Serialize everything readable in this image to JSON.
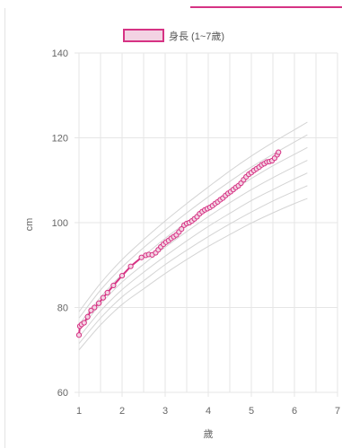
{
  "theme": {
    "accent": "#d63384",
    "grid_color": "#e6e6e6",
    "reference_color": "#d4d4d4",
    "label_color": "#666666"
  },
  "chart_data": {
    "type": "line",
    "xlabel": "歲",
    "ylabel": "cm",
    "xlim": [
      1,
      7
    ],
    "ylim": [
      60,
      140
    ],
    "xticks": [
      1,
      2,
      3,
      4,
      5,
      6,
      7
    ],
    "yticks": [
      60,
      80,
      100,
      120,
      140
    ],
    "grid": true,
    "legend": "top-center",
    "series": [
      {
        "name": "身長 (1~7歲)",
        "color": "#d63384",
        "fill": "#f3d3e3",
        "x": [
          1.0,
          1.02,
          1.06,
          1.12,
          1.2,
          1.28,
          1.36,
          1.46,
          1.56,
          1.66,
          1.8,
          2.0,
          2.2,
          2.45,
          2.55,
          2.62,
          2.7,
          2.78,
          2.84,
          2.9,
          2.96,
          3.02,
          3.08,
          3.14,
          3.2,
          3.26,
          3.32,
          3.38,
          3.44,
          3.5,
          3.56,
          3.62,
          3.68,
          3.74,
          3.8,
          3.86,
          3.92,
          3.98,
          4.04,
          4.1,
          4.16,
          4.22,
          4.28,
          4.34,
          4.4,
          4.46,
          4.52,
          4.58,
          4.64,
          4.7,
          4.76,
          4.82,
          4.88,
          4.94,
          5.0,
          5.06,
          5.12,
          5.18,
          5.24,
          5.3,
          5.36,
          5.42,
          5.48,
          5.54,
          5.6,
          5.63
        ],
        "y": [
          73.5,
          75.6,
          76.0,
          76.4,
          77.8,
          79.3,
          80.0,
          81.0,
          82.3,
          83.5,
          85.2,
          87.5,
          89.7,
          91.8,
          92.3,
          92.5,
          92.4,
          92.9,
          93.6,
          94.3,
          94.9,
          95.4,
          95.8,
          96.3,
          96.7,
          97.1,
          97.8,
          98.5,
          99.4,
          99.8,
          100.0,
          100.4,
          100.9,
          101.4,
          102.1,
          102.6,
          103.0,
          103.3,
          103.6,
          104.0,
          104.5,
          104.9,
          105.4,
          105.8,
          106.4,
          106.9,
          107.3,
          107.8,
          108.3,
          108.7,
          109.3,
          110.1,
          110.8,
          111.4,
          111.8,
          112.3,
          112.7,
          113.1,
          113.6,
          113.9,
          114.3,
          114.4,
          114.6,
          115.2,
          116.0,
          116.6
        ]
      }
    ],
    "reference_curves": {
      "x": [
        1,
        1.5,
        2,
        2.5,
        3,
        3.5,
        4,
        4.5,
        5,
        5.5,
        6,
        6.3
      ],
      "curves": [
        [
          70.0,
          75.9,
          80.7,
          84.4,
          88.0,
          91.3,
          94.4,
          97.2,
          99.9,
          102.3,
          104.5,
          105.7
        ],
        [
          71.5,
          77.5,
          82.5,
          86.3,
          90.1,
          93.5,
          96.7,
          99.7,
          102.5,
          105.1,
          107.4,
          108.7
        ],
        [
          73.0,
          79.2,
          84.2,
          88.3,
          92.1,
          95.7,
          99.1,
          102.2,
          105.2,
          107.8,
          110.3,
          111.7
        ],
        [
          74.5,
          80.8,
          86.0,
          90.2,
          94.2,
          97.9,
          101.4,
          104.7,
          107.8,
          110.6,
          113.2,
          114.7
        ],
        [
          76.0,
          82.4,
          87.8,
          92.1,
          96.3,
          100.1,
          103.7,
          107.2,
          110.4,
          113.4,
          116.1,
          117.7
        ],
        [
          77.5,
          84.1,
          89.5,
          94.1,
          98.3,
          102.3,
          106.1,
          109.7,
          113.1,
          116.1,
          119.0,
          120.7
        ],
        [
          79.0,
          85.7,
          91.3,
          96.0,
          100.4,
          104.5,
          108.4,
          112.2,
          115.7,
          118.9,
          121.9,
          123.7
        ]
      ]
    }
  }
}
